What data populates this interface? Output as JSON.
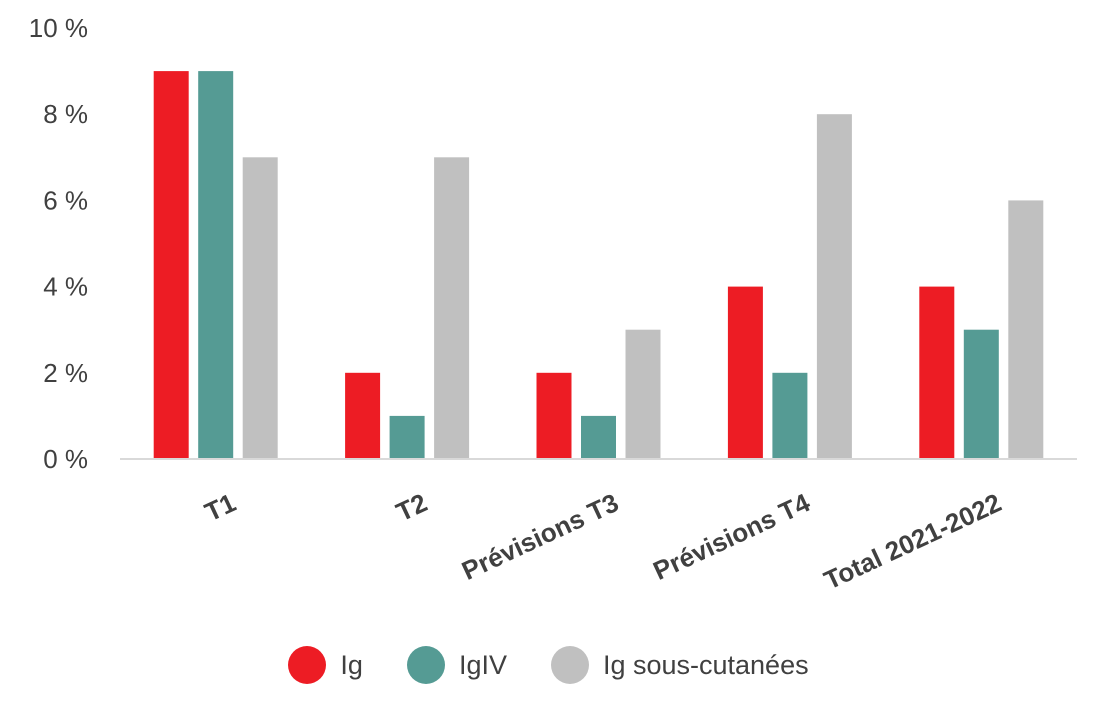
{
  "chart_data": {
    "type": "bar",
    "title": "",
    "xlabel": "",
    "ylabel": "",
    "ylim": [
      0,
      10
    ],
    "yticks": [
      0,
      2,
      4,
      6,
      8,
      10
    ],
    "ytick_labels": [
      "0 %",
      "2 %",
      "4 %",
      "6 %",
      "8 %",
      "10 %"
    ],
    "categories": [
      "T1",
      "T2",
      "Prévisions T3",
      "Prévisions T4",
      "Total 2021-2022"
    ],
    "series": [
      {
        "name": "Ig",
        "color": "#ED1C24",
        "values": [
          9,
          2,
          2,
          4,
          4
        ]
      },
      {
        "name": "IgIV",
        "color": "#559B94",
        "values": [
          9,
          1,
          1,
          2,
          3
        ]
      },
      {
        "name": "Ig sous-cutanées",
        "color": "#C0C0C0",
        "values": [
          7,
          7,
          3,
          8,
          6
        ]
      }
    ],
    "legend_position": "bottom",
    "grid": false
  }
}
